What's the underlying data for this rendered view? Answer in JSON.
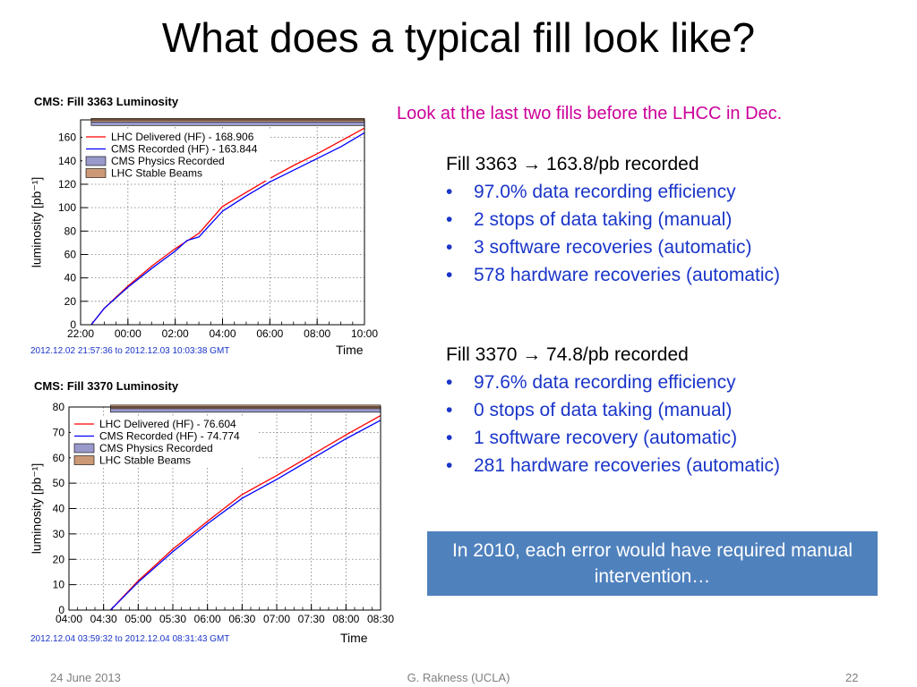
{
  "slide": {
    "title": "What does a typical fill look like?",
    "note": "Look at the last two fills before the LHCC in Dec.",
    "fills": [
      {
        "heading": "Fill 3363 → 163.8/pb recorded",
        "bullets": [
          "97.0% data recording efficiency",
          "2 stops of data taking (manual)",
          "3 software recoveries (automatic)",
          "578 hardware recoveries (automatic)"
        ]
      },
      {
        "heading": "Fill 3370 → 74.8/pb recorded",
        "bullets": [
          "97.6% data recording efficiency",
          "0 stops of data taking (manual)",
          "1 software recovery (automatic)",
          "281 hardware recoveries (automatic)"
        ]
      }
    ],
    "callout": "In 2010, each error would have required manual intervention…",
    "footer": {
      "date": "24 June 2013",
      "author": "G. Rakness (UCLA)",
      "page": "22"
    }
  },
  "colors": {
    "delivered": "#ff0000",
    "recorded": "#0000ff",
    "physics_fill": "#9999cc",
    "stable_fill": "#cc9977",
    "note": "#cc0099",
    "bullet_text": "#1a35c8",
    "callout_bg": "#4f81bd"
  },
  "chart_data": [
    {
      "type": "line",
      "title": "CMS: Fill 3363 Luminosity",
      "xlabel": "Time",
      "ylabel": "luminosity [pb⁻¹]",
      "range_text": "2012.12.02 21:57:36 to 2012.12.03 10:03:38 GMT",
      "x_ticks": [
        "22:00",
        "00:00",
        "02:00",
        "04:00",
        "06:00",
        "08:00",
        "10:00"
      ],
      "y_ticks": [
        "0",
        "20",
        "40",
        "60",
        "80",
        "100",
        "120",
        "140",
        "160"
      ],
      "xlim": [
        0,
        12
      ],
      "ylim": [
        0,
        175
      ],
      "grid": true,
      "legend_position": "top-left",
      "legend": [
        {
          "label": "LHC Delivered (HF) - 168.906",
          "kind": "line",
          "color": "#ff0000"
        },
        {
          "label": "CMS Recorded (HF) - 163.844",
          "kind": "line",
          "color": "#0000ff"
        },
        {
          "label": "CMS Physics Recorded",
          "kind": "box",
          "color": "#9999cc"
        },
        {
          "label": "LHC Stable Beams",
          "kind": "box",
          "color": "#cc9977"
        }
      ],
      "series": [
        {
          "name": "LHC Delivered (HF) - 168.906",
          "color": "#ff0000",
          "x": [
            0.45,
            1,
            2,
            3,
            4,
            5,
            6,
            7,
            8,
            9,
            10,
            11,
            12
          ],
          "y": [
            0,
            14,
            33,
            50,
            65,
            78,
            101,
            113,
            125,
            136,
            146,
            157,
            168
          ]
        },
        {
          "name": "CMS Recorded (HF) - 163.844",
          "color": "#0000ff",
          "x": [
            0.45,
            1,
            2,
            3,
            4,
            4.5,
            5,
            6,
            7,
            8,
            9,
            10,
            11,
            12
          ],
          "y": [
            0,
            14,
            32,
            48,
            63,
            72,
            75,
            97,
            110,
            122,
            132,
            142,
            152,
            164
          ]
        }
      ],
      "stable_beams_start": 0.45,
      "bands": {
        "physics_level": 172,
        "stable_level": 174
      }
    },
    {
      "type": "line",
      "title": "CMS: Fill 3370 Luminosity",
      "xlabel": "Time",
      "ylabel": "luminosity [pb⁻¹]",
      "range_text": "2012.12.04 03:59:32 to 2012.12.04 08:31:43 GMT",
      "x_ticks": [
        "04:00",
        "04:30",
        "05:00",
        "05:30",
        "06:00",
        "06:30",
        "07:00",
        "07:30",
        "08:00",
        "08:30"
      ],
      "y_ticks": [
        "0",
        "10",
        "20",
        "30",
        "40",
        "50",
        "60",
        "70",
        "80"
      ],
      "xlim": [
        0,
        4.5
      ],
      "ylim": [
        0,
        80
      ],
      "grid": true,
      "legend_position": "top-left",
      "legend": [
        {
          "label": "LHC Delivered (HF) - 76.604",
          "kind": "line",
          "color": "#ff0000"
        },
        {
          "label": "CMS Recorded (HF) - 74.774",
          "kind": "line",
          "color": "#0000ff"
        },
        {
          "label": "CMS Physics Recorded",
          "kind": "box",
          "color": "#9999cc"
        },
        {
          "label": "LHC Stable Beams",
          "kind": "box",
          "color": "#cc9977"
        }
      ],
      "series": [
        {
          "name": "LHC Delivered (HF) - 76.604",
          "color": "#ff0000",
          "x": [
            0.6,
            1,
            1.5,
            2,
            2.5,
            3,
            3.5,
            4,
            4.5
          ],
          "y": [
            0,
            11.5,
            24,
            35,
            45.5,
            53,
            61,
            69,
            76.6
          ]
        },
        {
          "name": "CMS Recorded (HF) - 74.774",
          "color": "#0000ff",
          "x": [
            0.6,
            1,
            1.5,
            2,
            2.5,
            3,
            3.5,
            4,
            4.5
          ],
          "y": [
            0,
            11,
            23,
            34,
            44,
            51.5,
            59.5,
            67.5,
            74.8
          ]
        }
      ],
      "stable_beams_start": 0.6,
      "bands": {
        "physics_level": 79.2,
        "stable_level": 79.7
      }
    }
  ]
}
